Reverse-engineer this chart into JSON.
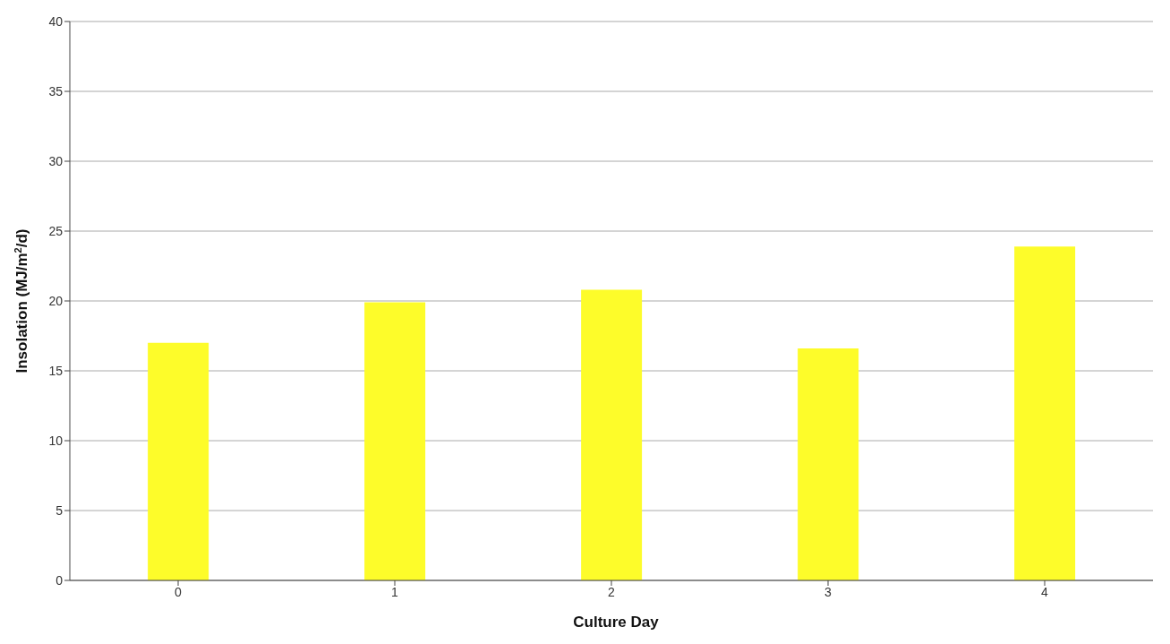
{
  "chart_data": {
    "type": "bar",
    "xlabel": "Culture Day",
    "ylabel": "Insolation (MJ/m$^{2}$/d)",
    "categories": [
      "0",
      "1",
      "2",
      "3",
      "4"
    ],
    "values": [
      17.0,
      19.9,
      20.8,
      16.6,
      23.9
    ],
    "color": "#fdfc2a",
    "ylim": [
      0,
      40
    ],
    "yticks": [
      0,
      5,
      10,
      15,
      20,
      25,
      30,
      35,
      40
    ],
    "grid": "y"
  }
}
